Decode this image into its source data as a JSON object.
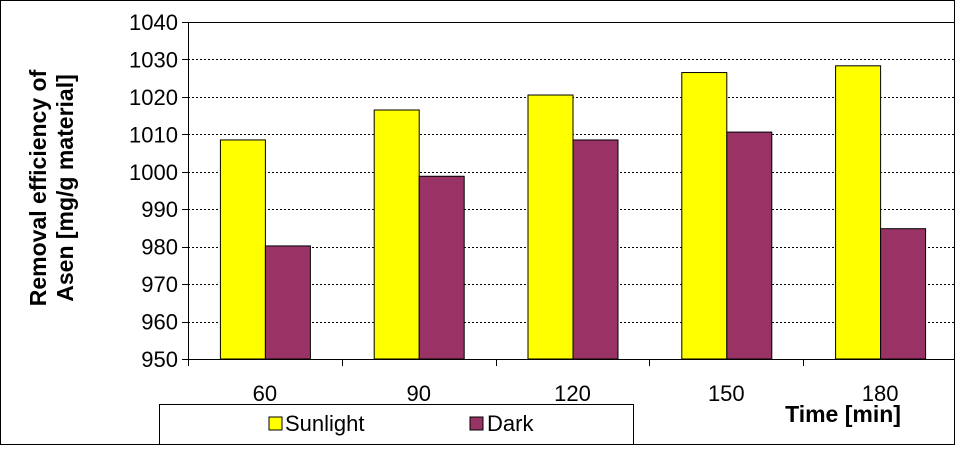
{
  "chart_data": {
    "type": "bar",
    "categories": [
      "60",
      "90",
      "120",
      "150",
      "180"
    ],
    "series": [
      {
        "name": "Sunlight",
        "color": "#FFFF00",
        "values": [
          1008.5,
          1016.5,
          1020.5,
          1026.5,
          1028.3
        ]
      },
      {
        "name": "Dark",
        "color": "#993366",
        "values": [
          980.2,
          998.8,
          1008.5,
          1010.6,
          984.8
        ]
      }
    ],
    "title": "",
    "xlabel": "Time [min]",
    "ylabel_line1": "Removal efficiency of",
    "ylabel_line2": "Asen [mg/g material]",
    "ylim": [
      950,
      1040
    ],
    "yticks": [
      950,
      960,
      970,
      980,
      990,
      1000,
      1010,
      1020,
      1030,
      1040
    ],
    "grid": "horizontal-dashed",
    "legend_position": "bottom",
    "colors": {
      "bar_outline": "#000000",
      "gridline": "#000000",
      "plot_border": "#000000"
    }
  }
}
